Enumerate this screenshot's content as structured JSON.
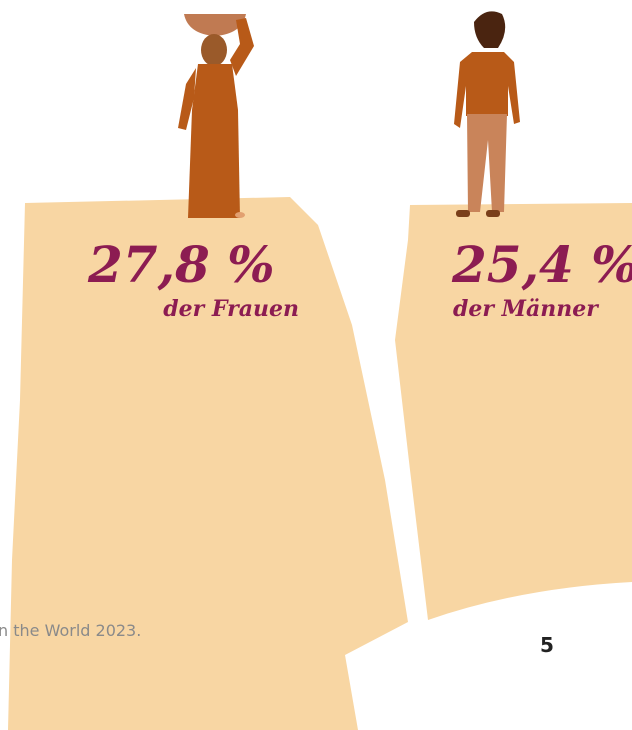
{
  "figures": [
    {
      "percent": "27,8 %",
      "label": "der Frauen"
    },
    {
      "percent": "25,4 %",
      "label": "der Männer"
    }
  ],
  "footer": {
    "source": "n the World 2023.",
    "page_number": "5"
  }
}
